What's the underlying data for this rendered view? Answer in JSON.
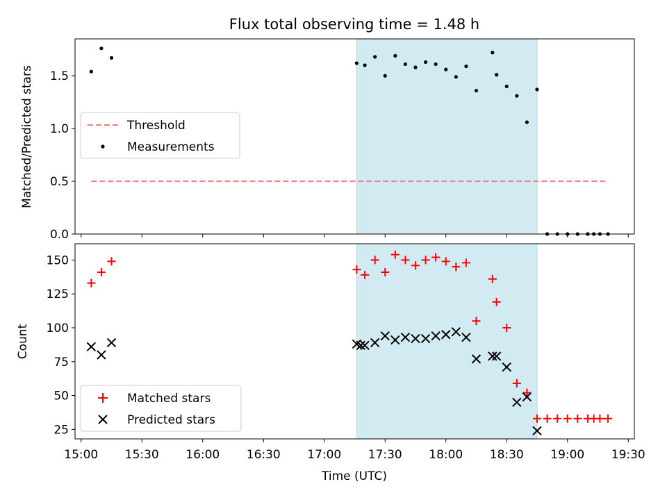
{
  "chart_data": {
    "title": "Flux total observing time = 1.48 h",
    "xlabel": "Time (UTC)",
    "x_ticks": [
      "15:00",
      "15:30",
      "16:00",
      "16:30",
      "17:00",
      "17:30",
      "18:00",
      "18:30",
      "19:00",
      "19:30"
    ],
    "x_range": [
      "14:57",
      "19:33"
    ],
    "shaded_span": {
      "start": "17:16",
      "end": "18:45",
      "color": "#add8e6"
    },
    "panels": [
      {
        "type": "scatter",
        "ylabel": "Matched/Predicted stars",
        "ylim": [
          0.0,
          1.85
        ],
        "y_ticks": [
          "0.0",
          "0.5",
          "1.0",
          "1.5"
        ],
        "legend_position": "center-left",
        "series": [
          {
            "name": "Threshold",
            "kind": "dashed-line",
            "color": "#f08080",
            "x": [
              "15:05",
              "19:20"
            ],
            "y": [
              0.5,
              0.5
            ]
          },
          {
            "name": "Measurements",
            "kind": "dot",
            "color": "#000000",
            "x": [
              "15:05",
              "15:10",
              "15:15",
              "17:16",
              "17:20",
              "17:25",
              "17:30",
              "17:35",
              "17:40",
              "17:45",
              "17:50",
              "17:55",
              "18:00",
              "18:05",
              "18:10",
              "18:15",
              "18:23",
              "18:25",
              "18:30",
              "18:35",
              "18:40",
              "18:45",
              "18:50",
              "18:55",
              "19:00",
              "19:05",
              "19:10",
              "19:13",
              "19:16",
              "19:20"
            ],
            "y": [
              1.54,
              1.76,
              1.67,
              1.62,
              1.6,
              1.68,
              1.5,
              1.69,
              1.61,
              1.58,
              1.63,
              1.61,
              1.56,
              1.49,
              1.59,
              1.36,
              1.72,
              1.51,
              1.4,
              1.31,
              1.06,
              1.37,
              0.0,
              0.0,
              0.0,
              0.0,
              0.0,
              0.0,
              0.0,
              0.0
            ]
          }
        ]
      },
      {
        "type": "scatter",
        "ylabel": "Count",
        "ylim": [
          18,
          162
        ],
        "y_ticks": [
          "25",
          "50",
          "75",
          "100",
          "125",
          "150"
        ],
        "legend_position": "lower-left",
        "series": [
          {
            "name": "Matched stars",
            "kind": "plus",
            "color": "#ff0000",
            "x": [
              "15:05",
              "15:10",
              "15:15",
              "17:16",
              "17:20",
              "17:25",
              "17:30",
              "17:35",
              "17:40",
              "17:45",
              "17:50",
              "17:55",
              "18:00",
              "18:05",
              "18:10",
              "18:15",
              "18:23",
              "18:25",
              "18:30",
              "18:35",
              "18:40",
              "18:45",
              "18:50",
              "18:55",
              "19:00",
              "19:05",
              "19:10",
              "19:13",
              "19:16",
              "19:20"
            ],
            "y": [
              133,
              141,
              149,
              143,
              139,
              150,
              141,
              154,
              150,
              146,
              150,
              152,
              149,
              145,
              148,
              105,
              136,
              119,
              100,
              59,
              52,
              33,
              33,
              33,
              33,
              33,
              33,
              33,
              33,
              33
            ]
          },
          {
            "name": "Predicted stars",
            "kind": "cross",
            "color": "#000000",
            "x": [
              "15:05",
              "15:10",
              "15:15",
              "17:16",
              "17:18",
              "17:20",
              "17:25",
              "17:30",
              "17:35",
              "17:40",
              "17:45",
              "17:50",
              "17:55",
              "18:00",
              "18:05",
              "18:10",
              "18:15",
              "18:23",
              "18:25",
              "18:30",
              "18:35",
              "18:40",
              "18:45"
            ],
            "y": [
              86,
              80,
              89,
              88,
              87,
              87,
              89,
              94,
              91,
              93,
              92,
              92,
              94,
              95,
              97,
              93,
              77,
              79,
              79,
              71,
              45,
              49,
              24
            ]
          }
        ]
      }
    ]
  }
}
